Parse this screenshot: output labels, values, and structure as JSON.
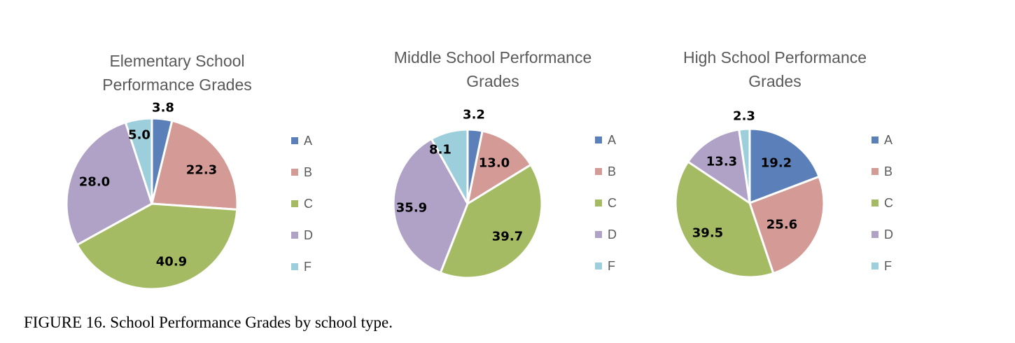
{
  "caption": "FIGURE 16. School Performance Grades by school type.",
  "colors": {
    "A": "#5b80b9",
    "B": "#d39a96",
    "C": "#a4bb64",
    "D": "#b0a2c6",
    "F": "#9ccedb"
  },
  "chart_data": [
    {
      "type": "pie",
      "title": [
        "Elementary School",
        "Performance Grades"
      ],
      "categories": [
        "A",
        "B",
        "C",
        "D",
        "F"
      ],
      "values": [
        3.8,
        22.3,
        40.9,
        28.0,
        5.0
      ],
      "data_labels": [
        "3.8",
        "22.3",
        "40.9",
        "28.0",
        "5.0"
      ],
      "legend": [
        "A",
        "B",
        "C",
        "D",
        "F"
      ],
      "legend_position": "right"
    },
    {
      "type": "pie",
      "title": [
        "Middle School Performance",
        "Grades"
      ],
      "categories": [
        "A",
        "B",
        "C",
        "D",
        "F"
      ],
      "values": [
        3.2,
        13.0,
        39.7,
        35.9,
        8.1
      ],
      "data_labels": [
        "3.2",
        "13.0",
        "39.7",
        "35.9",
        "8.1"
      ],
      "legend": [
        "A",
        "B",
        "C",
        "D",
        "F"
      ],
      "legend_position": "right"
    },
    {
      "type": "pie",
      "title": [
        "High School Performance",
        "Grades"
      ],
      "categories": [
        "A",
        "B",
        "C",
        "D",
        "F"
      ],
      "values": [
        19.2,
        25.6,
        39.5,
        13.3,
        2.3
      ],
      "data_labels": [
        "19.2",
        "25.6",
        "39.5",
        "13.3",
        "2.3"
      ],
      "legend": [
        "A",
        "B",
        "C",
        "D",
        "F"
      ],
      "legend_position": "right"
    }
  ]
}
